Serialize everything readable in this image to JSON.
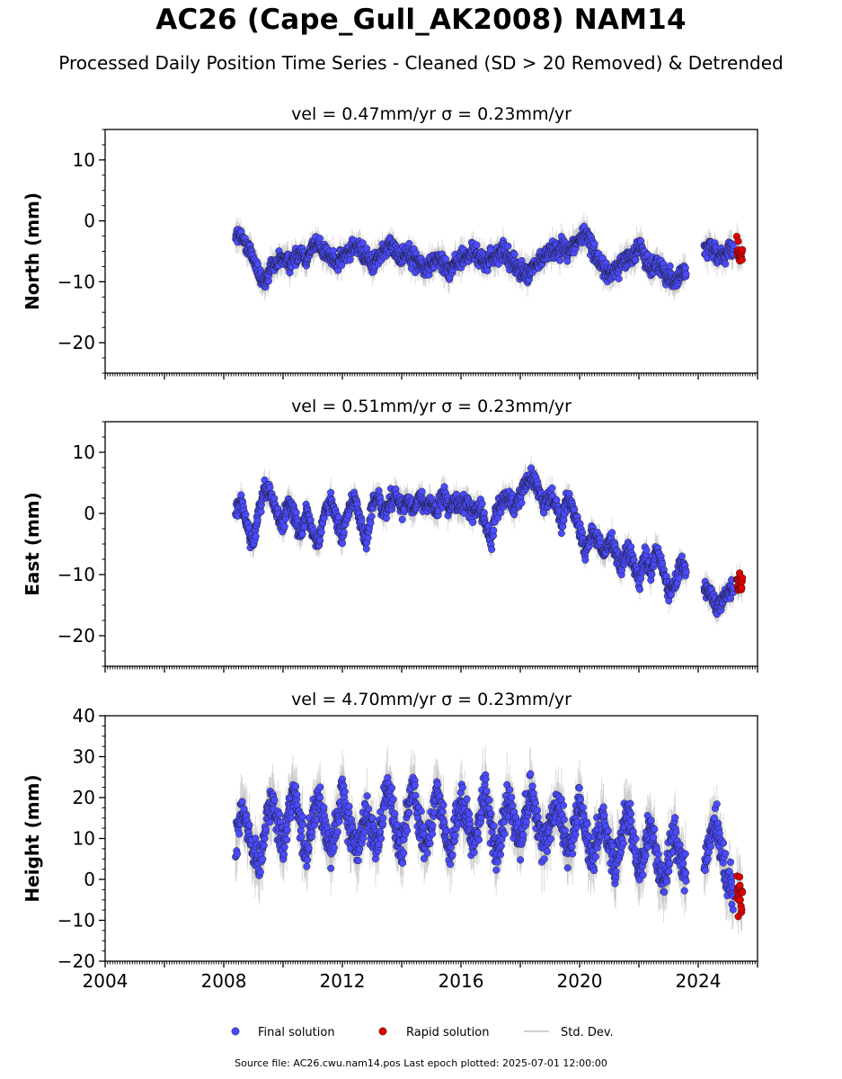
{
  "title": "AC26 (Cape_Gull_AK2008) NAM14",
  "subtitle": "Processed Daily Position Time Series - Cleaned (SD > 20 Removed) & Detrended",
  "footer": "Source file: AC26.cwu.nam14.pos  Last epoch plotted: 2025-07-01 12:00:00",
  "colors": {
    "final": "#4a4aff",
    "rapid": "#e00000",
    "std": "#bdbdbd",
    "axis": "#000000"
  },
  "legend": {
    "placement": "bottom-center",
    "final": "Final solution",
    "rapid": "Rapid solution",
    "std": "Std. Dev."
  },
  "chart_data": [
    {
      "type": "scatter",
      "title": "vel = 0.47mm/yr   σ = 0.23mm/yr",
      "ylabel": "North (mm)",
      "xlim": [
        2004.0,
        2026.0
      ],
      "ylim": [
        -25,
        15
      ],
      "yticks": [
        -20,
        -10,
        0,
        10
      ],
      "xticks": [],
      "series": [
        {
          "name": "Final solution",
          "segments": [
            {
              "x": [
                2008.4,
                2008.6,
                2008.8,
                2009.0,
                2009.2,
                2009.4,
                2009.6,
                2009.8,
                2010.0,
                2010.2,
                2010.4,
                2010.6,
                2010.8,
                2011.0,
                2011.2,
                2011.4,
                2011.6,
                2011.8,
                2012.0,
                2012.2,
                2012.4,
                2012.6,
                2012.8,
                2013.0,
                2013.2,
                2013.4,
                2013.6,
                2013.8,
                2014.0,
                2014.2,
                2014.4,
                2014.6,
                2014.8,
                2015.0,
                2015.2,
                2015.4,
                2015.6,
                2015.8,
                2016.0,
                2016.2,
                2016.4,
                2016.6,
                2016.8,
                2017.0,
                2017.2,
                2017.4,
                2017.6,
                2017.8,
                2018.0,
                2018.2,
                2018.4,
                2018.6,
                2018.8,
                2019.0,
                2019.2,
                2019.4,
                2019.6,
                2019.8,
                2020.0,
                2020.2,
                2020.4,
                2020.6,
                2020.8,
                2021.0,
                2021.2,
                2021.4,
                2021.6,
                2021.8,
                2022.0,
                2022.2,
                2022.4,
                2022.6,
                2022.8,
                2023.0,
                2023.2,
                2023.4,
                2023.6
              ],
              "y": [
                -2,
                -3,
                -4,
                -6,
                -9,
                -10,
                -8,
                -7,
                -6,
                -7,
                -6,
                -5,
                -6,
                -4,
                -4,
                -5,
                -6,
                -7,
                -6,
                -5,
                -4,
                -5,
                -6,
                -7,
                -6,
                -5,
                -4,
                -5,
                -6,
                -5,
                -6,
                -7,
                -8,
                -7,
                -6,
                -7,
                -8,
                -7,
                -6,
                -6,
                -5,
                -6,
                -7,
                -6,
                -6,
                -5,
                -6,
                -7,
                -8,
                -9,
                -8,
                -7,
                -6,
                -5,
                -5,
                -4,
                -5,
                -4,
                -3,
                -2,
                -4,
                -6,
                -8,
                -9,
                -8,
                -7,
                -6,
                -6,
                -4,
                -6,
                -8,
                -7,
                -8,
                -9,
                -10,
                -9,
                -8
              ]
            },
            {
              "x": [
                2024.2,
                2024.4,
                2024.6,
                2024.8,
                2025.0,
                2025.2
              ],
              "y": [
                -5,
                -4,
                -5,
                -6,
                -5,
                -5
              ]
            }
          ]
        },
        {
          "name": "Rapid solution",
          "segments": [
            {
              "x": [
                2025.3,
                2025.35,
                2025.4,
                2025.45,
                2025.5
              ],
              "y": [
                -4,
                -5,
                -6,
                -5,
                -6
              ]
            }
          ]
        }
      ]
    },
    {
      "type": "scatter",
      "title": "vel = 0.51mm/yr   σ = 0.23mm/yr",
      "ylabel": "East (mm)",
      "xlim": [
        2004.0,
        2026.0
      ],
      "ylim": [
        -25,
        15
      ],
      "yticks": [
        -20,
        -10,
        0,
        10
      ],
      "xticks": [],
      "series": [
        {
          "name": "Final solution",
          "segments": [
            {
              "x": [
                2008.4,
                2008.6,
                2008.8,
                2009.0,
                2009.2,
                2009.4,
                2009.6,
                2009.8,
                2010.0,
                2010.2,
                2010.4,
                2010.6,
                2010.8,
                2011.0,
                2011.2,
                2011.4,
                2011.6,
                2011.8,
                2012.0,
                2012.2,
                2012.4,
                2012.6,
                2012.8,
                2013.0,
                2013.2,
                2013.4,
                2013.6,
                2013.8,
                2014.0,
                2014.2,
                2014.4,
                2014.6,
                2014.8,
                2015.0,
                2015.2,
                2015.4,
                2015.6,
                2015.8,
                2016.0,
                2016.2,
                2016.4,
                2016.6,
                2016.8,
                2017.0,
                2017.2,
                2017.4,
                2017.6,
                2017.8,
                2018.0,
                2018.2,
                2018.4,
                2018.6,
                2018.8,
                2019.0,
                2019.2,
                2019.4,
                2019.6,
                2019.8,
                2020.0,
                2020.2,
                2020.4,
                2020.6,
                2020.8,
                2021.0,
                2021.2,
                2021.4,
                2021.6,
                2021.8,
                2022.0,
                2022.2,
                2022.4,
                2022.6,
                2022.8,
                2023.0,
                2023.2,
                2023.4,
                2023.6
              ],
              "y": [
                0,
                2,
                -2,
                -5,
                1,
                4,
                3,
                0,
                -2,
                2,
                -1,
                -4,
                1,
                -3,
                -5,
                0,
                2,
                -1,
                -4,
                1,
                3,
                -1,
                -5,
                1,
                3,
                0,
                2,
                3,
                1,
                2,
                0,
                3,
                1,
                2,
                0,
                3,
                1,
                2,
                1,
                2,
                0,
                1,
                -1,
                -5,
                1,
                2,
                3,
                1,
                3,
                5,
                6,
                4,
                1,
                3,
                2,
                -2,
                3,
                1,
                -3,
                -6,
                -3,
                -4,
                -7,
                -4,
                -6,
                -9,
                -6,
                -8,
                -11,
                -7,
                -10,
                -6,
                -9,
                -13,
                -12,
                -8,
                -10
              ]
            },
            {
              "x": [
                2024.2,
                2024.4,
                2024.6,
                2024.8,
                2025.0,
                2025.2
              ],
              "y": [
                -12,
                -13,
                -15,
                -14,
                -13,
                -12
              ]
            }
          ]
        },
        {
          "name": "Rapid solution",
          "segments": [
            {
              "x": [
                2025.3,
                2025.35,
                2025.4,
                2025.45,
                2025.5
              ],
              "y": [
                -11,
                -12,
                -11,
                -12,
                -11
              ]
            }
          ]
        }
      ]
    },
    {
      "type": "scatter",
      "title": "vel = 4.70mm/yr   σ = 0.23mm/yr",
      "ylabel": "Height (mm)",
      "xlim": [
        2004.0,
        2026.0
      ],
      "ylim": [
        -20,
        40
      ],
      "yticks": [
        -20,
        -10,
        0,
        10,
        20,
        30,
        40
      ],
      "xticks": [
        2004,
        2008,
        2012,
        2016,
        2020,
        2024
      ],
      "series": [
        {
          "name": "Final solution",
          "segments": [
            {
              "x": [
                2008.4,
                2008.6,
                2008.8,
                2009.0,
                2009.2,
                2009.4,
                2009.6,
                2009.8,
                2010.0,
                2010.2,
                2010.4,
                2010.6,
                2010.8,
                2011.0,
                2011.2,
                2011.4,
                2011.6,
                2011.8,
                2012.0,
                2012.2,
                2012.4,
                2012.6,
                2012.8,
                2013.0,
                2013.2,
                2013.4,
                2013.6,
                2013.8,
                2014.0,
                2014.2,
                2014.4,
                2014.6,
                2014.8,
                2015.0,
                2015.2,
                2015.4,
                2015.6,
                2015.8,
                2016.0,
                2016.2,
                2016.4,
                2016.6,
                2016.8,
                2017.0,
                2017.2,
                2017.4,
                2017.6,
                2017.8,
                2018.0,
                2018.2,
                2018.4,
                2018.6,
                2018.8,
                2019.0,
                2019.2,
                2019.4,
                2019.6,
                2019.8,
                2020.0,
                2020.2,
                2020.4,
                2020.6,
                2020.8,
                2021.0,
                2021.2,
                2021.4,
                2021.6,
                2021.8,
                2022.0,
                2022.2,
                2022.4,
                2022.6,
                2022.8,
                2023.0,
                2023.2,
                2023.4,
                2023.6
              ],
              "y": [
                8,
                18,
                14,
                6,
                3,
                14,
                20,
                14,
                8,
                18,
                22,
                12,
                6,
                16,
                20,
                12,
                6,
                14,
                22,
                14,
                8,
                10,
                16,
                12,
                8,
                18,
                22,
                12,
                6,
                16,
                24,
                14,
                8,
                14,
                22,
                14,
                6,
                12,
                20,
                14,
                8,
                14,
                22,
                14,
                6,
                12,
                20,
                14,
                10,
                16,
                22,
                14,
                8,
                12,
                18,
                14,
                6,
                12,
                20,
                12,
                4,
                10,
                16,
                8,
                2,
                10,
                18,
                10,
                2,
                8,
                14,
                6,
                -2,
                6,
                12,
                4,
                2
              ]
            },
            {
              "x": [
                2024.2,
                2024.4,
                2024.6,
                2024.8,
                2025.0,
                2025.2
              ],
              "y": [
                4,
                10,
                14,
                6,
                0,
                -4
              ]
            }
          ]
        },
        {
          "name": "Rapid solution",
          "segments": [
            {
              "x": [
                2025.3,
                2025.35,
                2025.4,
                2025.45,
                2025.5
              ],
              "y": [
                -2,
                -4,
                -3,
                -5,
                -2
              ]
            }
          ]
        }
      ]
    }
  ]
}
